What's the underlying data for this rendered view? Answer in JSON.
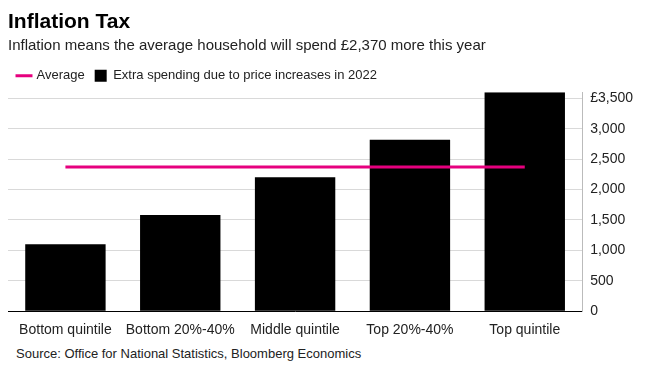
{
  "chart_data": {
    "type": "bar",
    "title": "Inflation Tax",
    "subtitle": "Inflation means the average household will spend £2,370 more this year",
    "source": "Source: Office for National Statistics, Bloomberg Economics",
    "categories": [
      "Bottom quintile",
      "Bottom 20%-40%",
      "Middle quintile",
      "Top 20%-40%",
      "Top quintile"
    ],
    "series": [
      {
        "name": "Extra spending due to price increases in 2022",
        "type": "bar",
        "color": "#000000",
        "values": [
          1100,
          1580,
          2200,
          2820,
          3600
        ]
      },
      {
        "name": "Average",
        "type": "line",
        "color": "#e6007e",
        "values": [
          2370,
          2370,
          2370,
          2370,
          2370
        ]
      }
    ],
    "ylim": [
      0,
      3600
    ],
    "yticks": [
      0,
      500,
      {
        "value": 1000,
        "label": "1,000"
      },
      {
        "value": 1500,
        "label": "1,500"
      },
      {
        "value": 2000,
        "label": "2,000"
      },
      {
        "value": 2500,
        "label": "2,500"
      },
      {
        "value": 3000,
        "label": "3,000"
      },
      {
        "value": 3500,
        "label": "£3,500"
      }
    ],
    "grid": true,
    "legend": "top-left"
  }
}
